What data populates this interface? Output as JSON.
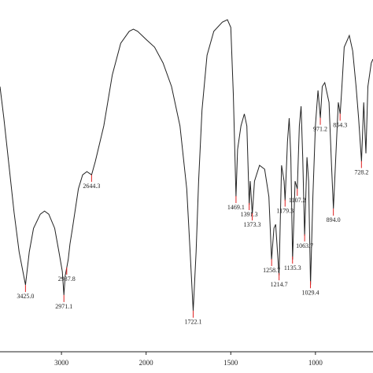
{
  "chart_data": {
    "type": "line",
    "x": [
      3726,
      3680,
      3620,
      3560,
      3500,
      3425,
      3380,
      3330,
      3250,
      3200,
      3150,
      3080,
      3030,
      2990,
      2971,
      2955,
      2938,
      2920,
      2900,
      2870,
      2800,
      2750,
      2700,
      2644,
      2600,
      2500,
      2400,
      2300,
      2200,
      2150,
      2100,
      2000,
      1950,
      1900,
      1850,
      1800,
      1760,
      1740,
      1722,
      1705,
      1690,
      1670,
      1640,
      1600,
      1550,
      1520,
      1500,
      1485,
      1469,
      1460,
      1440,
      1420,
      1405,
      1391,
      1385,
      1373,
      1360,
      1330,
      1300,
      1275,
      1259,
      1245,
      1235,
      1215,
      1200,
      1185,
      1179,
      1165,
      1155,
      1145,
      1135,
      1120,
      1107,
      1095,
      1085,
      1075,
      1064,
      1050,
      1040,
      1029,
      1015,
      1000,
      985,
      971,
      960,
      945,
      920,
      905,
      894,
      880,
      865,
      854,
      845,
      830,
      800,
      780,
      760,
      745,
      728,
      715,
      702,
      690,
      670,
      660
    ],
    "values": [
      75.4,
      66.4,
      53.0,
      39.6,
      28.4,
      19.0,
      28.4,
      35.1,
      39.1,
      40.0,
      39.1,
      35.1,
      28.4,
      22.8,
      16.1,
      21.7,
      23.9,
      26.2,
      30.6,
      35.1,
      46.3,
      50.3,
      51.2,
      50.3,
      54.1,
      64.2,
      78.7,
      87.7,
      91.1,
      91.7,
      91.1,
      88.8,
      86.6,
      82.1,
      75.4,
      64.2,
      46.3,
      28.4,
      11.6,
      28.4,
      48.5,
      68.7,
      84.3,
      91.1,
      93.7,
      94.4,
      92.2,
      73.2,
      44.1,
      57.5,
      64.2,
      67.6,
      64.2,
      41.8,
      48.5,
      39.1,
      48.5,
      53.0,
      51.9,
      44.1,
      26.2,
      35.1,
      36.2,
      21.7,
      53.0,
      48.5,
      43.0,
      59.7,
      66.4,
      55.3,
      26.2,
      48.5,
      46.3,
      64.2,
      69.8,
      55.3,
      32.9,
      55.3,
      48.5,
      19.0,
      44.1,
      64.2,
      74.3,
      66.4,
      75.4,
      76.5,
      70.9,
      53.0,
      40.7,
      55.3,
      70.9,
      67.6,
      74.3,
      86.6,
      89.9,
      85.5,
      75.4,
      66.4,
      54.1,
      70.9,
      56.4,
      75.4,
      82.1,
      83.2
    ],
    "color": "#222222",
    "xlim": [
      3726,
      660
    ],
    "x_break": 2000,
    "ylim": [
      0,
      100
    ],
    "xticks": [
      3000,
      2000,
      1500,
      1000
    ],
    "peaks": [
      {
        "value": 3425.0,
        "label": "3425.0"
      },
      {
        "value": 2971.1,
        "label": "2971.1"
      },
      {
        "value": 2937.8,
        "label": "2937.8"
      },
      {
        "value": 2644.3,
        "label": "2644.3"
      },
      {
        "value": 1722.1,
        "label": "1722.1"
      },
      {
        "value": 1469.1,
        "label": "1469.1"
      },
      {
        "value": 1391.3,
        "label": "1391.3"
      },
      {
        "value": 1373.3,
        "label": "1373.3"
      },
      {
        "value": 1258.7,
        "label": "1258.7"
      },
      {
        "value": 1214.7,
        "label": "1214.7"
      },
      {
        "value": 1179.3,
        "label": "1179.3"
      },
      {
        "value": 1135.3,
        "label": "1135.3"
      },
      {
        "value": 1107.2,
        "label": "1107.2"
      },
      {
        "value": 1063.7,
        "label": "1063.7"
      },
      {
        "value": 1029.4,
        "label": "1029.4"
      },
      {
        "value": 971.2,
        "label": "971.2"
      },
      {
        "value": 894.0,
        "label": "894.0"
      },
      {
        "value": 854.3,
        "label": "854.3"
      },
      {
        "value": 728.2,
        "label": "728.2"
      }
    ],
    "peak_color": "#e02020"
  }
}
